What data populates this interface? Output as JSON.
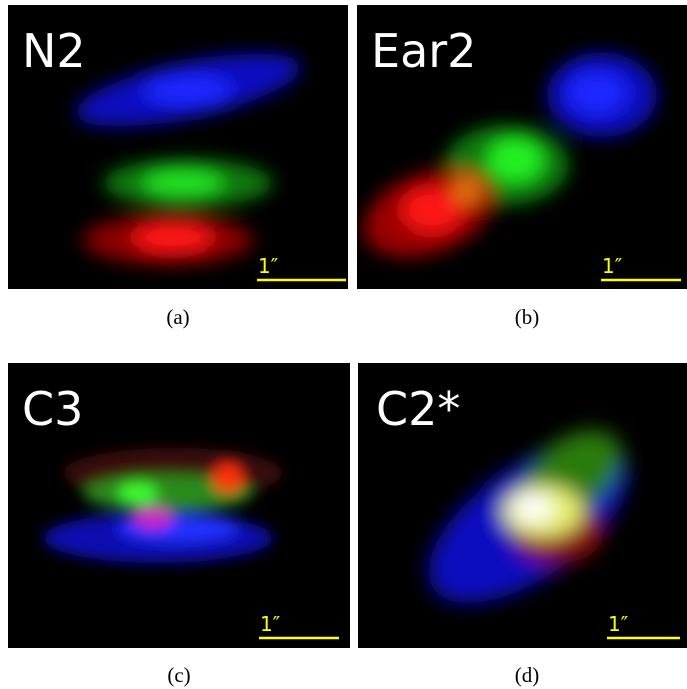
{
  "panels": [
    {
      "label": "N2",
      "scale_label": "1″",
      "caption": "(a)"
    },
    {
      "label": "Ear2",
      "scale_label": "1″",
      "caption": "(b)"
    },
    {
      "label": "C3",
      "scale_label": "1″",
      "caption": "(c)"
    },
    {
      "label": "C2*",
      "scale_label": "1″",
      "caption": "(d)"
    }
  ]
}
